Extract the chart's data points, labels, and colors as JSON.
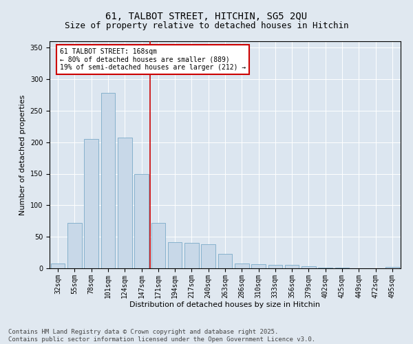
{
  "title": "61, TALBOT STREET, HITCHIN, SG5 2QU",
  "subtitle": "Size of property relative to detached houses in Hitchin",
  "xlabel": "Distribution of detached houses by size in Hitchin",
  "ylabel": "Number of detached properties",
  "categories": [
    "32sqm",
    "55sqm",
    "78sqm",
    "101sqm",
    "124sqm",
    "147sqm",
    "171sqm",
    "194sqm",
    "217sqm",
    "240sqm",
    "263sqm",
    "286sqm",
    "310sqm",
    "333sqm",
    "356sqm",
    "379sqm",
    "402sqm",
    "425sqm",
    "449sqm",
    "472sqm",
    "495sqm"
  ],
  "values": [
    8,
    72,
    205,
    278,
    207,
    150,
    72,
    42,
    40,
    38,
    23,
    8,
    7,
    6,
    5,
    3,
    1,
    1,
    0,
    0,
    2
  ],
  "bar_color": "#c8d8e8",
  "bar_edge_color": "#7aaac8",
  "vline_x": 5.5,
  "vline_color": "#cc0000",
  "annotation_text": "61 TALBOT STREET: 168sqm\n← 80% of detached houses are smaller (889)\n19% of semi-detached houses are larger (212) →",
  "annotation_box_color": "#ffffff",
  "annotation_box_edge": "#cc0000",
  "background_color": "#e0e8f0",
  "plot_bg_color": "#dce6f0",
  "ylim": [
    0,
    360
  ],
  "yticks": [
    0,
    50,
    100,
    150,
    200,
    250,
    300,
    350
  ],
  "footer": "Contains HM Land Registry data © Crown copyright and database right 2025.\nContains public sector information licensed under the Open Government Licence v3.0.",
  "title_fontsize": 10,
  "subtitle_fontsize": 9,
  "xlabel_fontsize": 8,
  "ylabel_fontsize": 8,
  "tick_fontsize": 7,
  "annot_fontsize": 7,
  "footer_fontsize": 6.5
}
